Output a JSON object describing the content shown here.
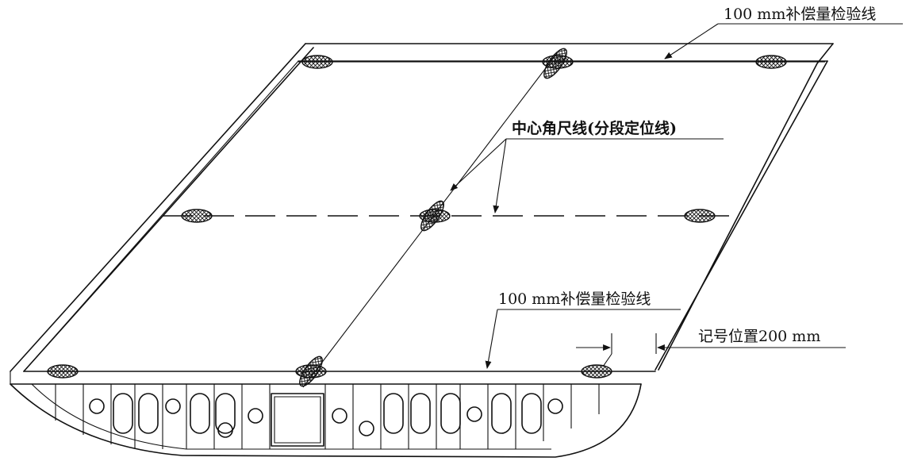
{
  "labels": {
    "top_check_line": "100 mm补偿量检验线",
    "center_line": "中心角尺线(分段定位线)",
    "bottom_check_line": "100 mm补偿量检验线",
    "mark_position": "记号位置200 mm"
  }
}
